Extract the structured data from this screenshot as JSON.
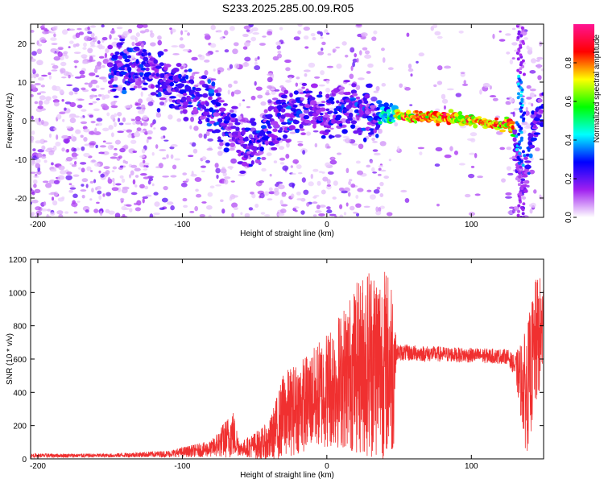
{
  "title": "S233.2025.285.00.09.R05",
  "chart_data": [
    {
      "type": "heatmap",
      "xlabel": "Height of straight line (km)",
      "ylabel": "Frequency (Hz)",
      "xlim": [
        -205,
        150
      ],
      "ylim": [
        -25,
        25
      ],
      "xticks": [
        -200,
        -100,
        0,
        100
      ],
      "yticks": [
        -20,
        -10,
        0,
        10,
        20
      ],
      "colorbar": {
        "label": "Normalized spectral amplitude",
        "range": [
          0,
          1
        ],
        "ticks": [
          "0.0",
          "0.2",
          "0.4",
          "0.6",
          "0.8"
        ],
        "colors": [
          "#ffffff",
          "#a020f0",
          "#0000ff",
          "#00ffff",
          "#00ff00",
          "#ffff00",
          "#ff0000",
          "#ff1493"
        ]
      },
      "ridge": [
        {
          "x": -140,
          "y": 14
        },
        {
          "x": -120,
          "y": 12
        },
        {
          "x": -100,
          "y": 8
        },
        {
          "x": -85,
          "y": 5
        },
        {
          "x": -70,
          "y": 0
        },
        {
          "x": -58,
          "y": -6
        },
        {
          "x": -48,
          "y": -7
        },
        {
          "x": -40,
          "y": -2
        },
        {
          "x": -30,
          "y": 2
        },
        {
          "x": -20,
          "y": 2
        },
        {
          "x": -10,
          "y": 5
        },
        {
          "x": 0,
          "y": 0
        },
        {
          "x": 10,
          "y": 4
        },
        {
          "x": 25,
          "y": 2
        },
        {
          "x": 40,
          "y": 2
        },
        {
          "x": 60,
          "y": 1
        },
        {
          "x": 80,
          "y": 1
        },
        {
          "x": 100,
          "y": 0
        },
        {
          "x": 115,
          "y": -1
        },
        {
          "x": 128,
          "y": -1
        },
        {
          "x": 132,
          "y": -8
        },
        {
          "x": 136,
          "y": -20
        },
        {
          "x": 142,
          "y": -3
        },
        {
          "x": 150,
          "y": 3
        }
      ]
    },
    {
      "type": "line",
      "xlabel": "Height of straight line (km)",
      "ylabel": "SNR (10 * v/v)",
      "xlim": [
        -205,
        150
      ],
      "ylim": [
        0,
        1200
      ],
      "xticks": [
        -200,
        -100,
        0,
        100
      ],
      "yticks": [
        0,
        200,
        400,
        600,
        800,
        1000,
        1200
      ],
      "color": "#f03030",
      "envelope": [
        {
          "x": -205,
          "mean": 20,
          "spread": 12
        },
        {
          "x": -150,
          "mean": 20,
          "spread": 12
        },
        {
          "x": -110,
          "mean": 30,
          "spread": 20
        },
        {
          "x": -80,
          "mean": 60,
          "spread": 50
        },
        {
          "x": -65,
          "mean": 150,
          "spread": 150
        },
        {
          "x": -60,
          "mean": 60,
          "spread": 40
        },
        {
          "x": -40,
          "mean": 100,
          "spread": 120
        },
        {
          "x": -30,
          "mean": 260,
          "spread": 260
        },
        {
          "x": -10,
          "mean": 360,
          "spread": 300
        },
        {
          "x": 10,
          "mean": 480,
          "spread": 420
        },
        {
          "x": 30,
          "mean": 600,
          "spread": 600
        },
        {
          "x": 46,
          "mean": 560,
          "spread": 560
        },
        {
          "x": 48,
          "mean": 640,
          "spread": 50
        },
        {
          "x": 90,
          "mean": 625,
          "spread": 45
        },
        {
          "x": 125,
          "mean": 615,
          "spread": 45
        },
        {
          "x": 130,
          "mean": 560,
          "spread": 60
        },
        {
          "x": 138,
          "mean": 400,
          "spread": 380
        },
        {
          "x": 145,
          "mean": 700,
          "spread": 400
        },
        {
          "x": 150,
          "mean": 780,
          "spread": 320
        }
      ]
    }
  ]
}
